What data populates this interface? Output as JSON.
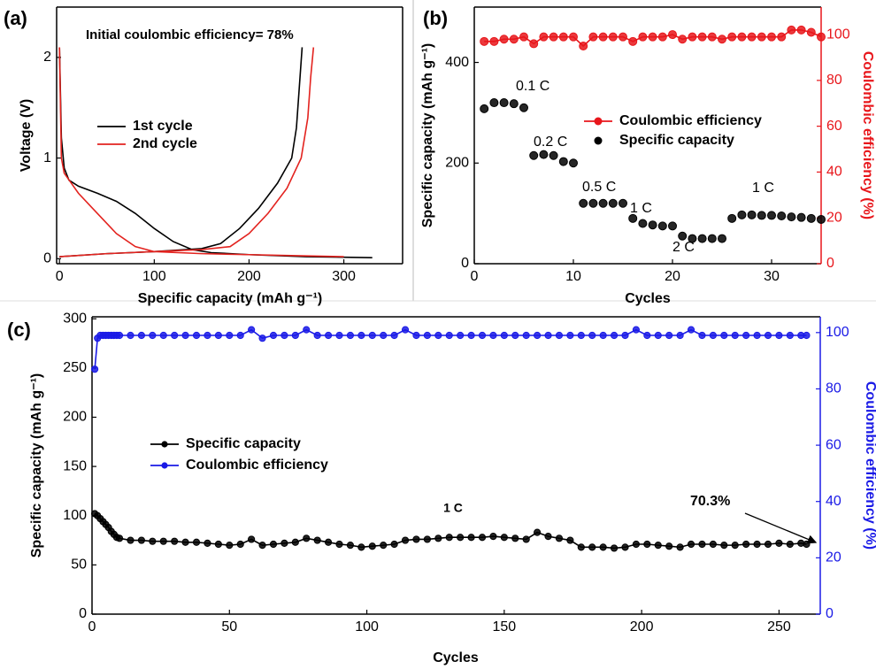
{
  "chart_data": [
    {
      "type": "line",
      "panel": "(a)",
      "annotations": [
        "Initial coulombic efficiency= 78%"
      ],
      "x_label": "Specific capacity (mAh g⁻¹)",
      "y_label": "Voltage (V)",
      "xlim": [
        -3,
        362
      ],
      "xticks": [
        0,
        100,
        200,
        300
      ],
      "ylim": [
        -0.05,
        2.5
      ],
      "yticks": [
        0,
        1,
        2
      ],
      "series": [
        {
          "name": "1st cycle",
          "color": "#000000",
          "x": [
            0,
            2,
            5,
            10,
            20,
            40,
            60,
            80,
            100,
            120,
            140,
            160,
            200,
            260,
            330,
            null,
            0,
            50,
            100,
            150,
            170,
            190,
            210,
            230,
            245,
            250,
            253,
            256
          ],
          "values": [
            2.1,
            1.2,
            0.9,
            0.78,
            0.72,
            0.65,
            0.57,
            0.45,
            0.3,
            0.17,
            0.09,
            0.06,
            0.04,
            0.02,
            0.01,
            null,
            0.02,
            0.05,
            0.07,
            0.1,
            0.15,
            0.3,
            0.5,
            0.75,
            1.0,
            1.3,
            1.7,
            2.1
          ]
        },
        {
          "name": "2nd cycle",
          "color": "#e3231f",
          "x": [
            0,
            2,
            5,
            20,
            40,
            60,
            80,
            100,
            150,
            200,
            250,
            300,
            null,
            0,
            50,
            100,
            150,
            180,
            200,
            220,
            240,
            255,
            262,
            265,
            268
          ],
          "values": [
            2.1,
            1.0,
            0.85,
            0.65,
            0.45,
            0.25,
            0.12,
            0.07,
            0.05,
            0.04,
            0.03,
            0.02,
            null,
            0.02,
            0.05,
            0.07,
            0.09,
            0.12,
            0.25,
            0.45,
            0.7,
            1.0,
            1.4,
            1.8,
            2.1
          ]
        }
      ]
    },
    {
      "type": "line",
      "panel": "(b)",
      "annotations": [
        "0.1 C",
        "0.2 C",
        "0.5 C",
        "1 C",
        "2 C",
        "1 C"
      ],
      "x_label": "Cycles",
      "y_label": "Specific capacity (mAh g⁻¹)",
      "y2_label": "Coulombic efficiency (%)",
      "xlim": [
        0,
        35
      ],
      "xticks": [
        0,
        10,
        20,
        30
      ],
      "ylim": [
        0,
        510
      ],
      "yticks": [
        0,
        200,
        400
      ],
      "y2lim": [
        0,
        112
      ],
      "y2ticks": [
        0,
        20,
        40,
        60,
        80,
        100
      ],
      "x": [
        1,
        2,
        3,
        4,
        5,
        6,
        7,
        8,
        9,
        10,
        11,
        12,
        13,
        14,
        15,
        16,
        17,
        18,
        19,
        20,
        21,
        22,
        23,
        24,
        25,
        26,
        27,
        28,
        29,
        30,
        31,
        32,
        33,
        34,
        35
      ],
      "series": [
        {
          "name": "Coulombic efficiency",
          "color": "#e8161b",
          "axis": "y2",
          "line": true,
          "marker": true,
          "values": [
            97,
            97,
            98,
            98,
            99,
            96,
            99,
            99,
            99,
            99,
            95,
            99,
            99,
            99,
            99,
            97,
            99,
            99,
            99,
            100,
            98,
            99,
            99,
            99,
            98,
            99,
            99,
            99,
            99,
            99,
            99,
            102,
            102,
            101,
            99
          ]
        },
        {
          "name": "Specific capacity",
          "color": "#000000",
          "line": false,
          "marker": true,
          "values": [
            308,
            320,
            320,
            318,
            310,
            215,
            217,
            215,
            203,
            200,
            120,
            120,
            120,
            120,
            120,
            90,
            80,
            77,
            75,
            75,
            55,
            50,
            50,
            50,
            50,
            90,
            97,
            97,
            96,
            96,
            95,
            93,
            92,
            90,
            88
          ]
        }
      ]
    },
    {
      "type": "line",
      "panel": "(c)",
      "annotations": [
        "1 C",
        "70.3%"
      ],
      "x_label": "Cycles",
      "y_label": "Specific capacity (mAh g⁻¹)",
      "y2_label": "Coulombic efficiency (%)",
      "xlim": [
        0,
        265
      ],
      "xticks": [
        0,
        50,
        100,
        150,
        200,
        250
      ],
      "ylim": [
        0,
        302
      ],
      "yticks": [
        0,
        50,
        100,
        150,
        200,
        250,
        300
      ],
      "y2lim": [
        0,
        105.6
      ],
      "y2ticks": [
        0,
        20,
        40,
        60,
        80,
        100
      ],
      "x": [
        1,
        2,
        3,
        4,
        5,
        6,
        7,
        8,
        9,
        10,
        14,
        18,
        22,
        26,
        30,
        34,
        38,
        42,
        46,
        50,
        54,
        58,
        62,
        66,
        70,
        74,
        78,
        82,
        86,
        90,
        94,
        98,
        102,
        106,
        110,
        114,
        118,
        122,
        126,
        130,
        134,
        138,
        142,
        146,
        150,
        154,
        158,
        162,
        166,
        170,
        174,
        178,
        182,
        186,
        190,
        194,
        198,
        202,
        206,
        210,
        214,
        218,
        222,
        226,
        230,
        234,
        238,
        242,
        246,
        250,
        254,
        258,
        260
      ],
      "series": [
        {
          "name": "Specific capacity",
          "color": "#000000",
          "line": true,
          "marker": true,
          "values": [
            102,
            100,
            97,
            94,
            91,
            88,
            84,
            81,
            78,
            77,
            75,
            75,
            74,
            74,
            74,
            73,
            73,
            72,
            71,
            70,
            71,
            76,
            70,
            71,
            72,
            73,
            77,
            75,
            73,
            71,
            70,
            68,
            69,
            70,
            71,
            75,
            76,
            76,
            77,
            78,
            78,
            78,
            78,
            79,
            78,
            77,
            76,
            83,
            79,
            77,
            75,
            68,
            68,
            68,
            67,
            68,
            71,
            71,
            70,
            69,
            68,
            71,
            71,
            71,
            70,
            70,
            71,
            71,
            71,
            72,
            71,
            72,
            71
          ]
        },
        {
          "name": "Coulombic efficiency",
          "color": "#1a1ae6",
          "axis": "y2",
          "line": true,
          "marker": true,
          "values": [
            87,
            98,
            99,
            99,
            99,
            99,
            99,
            99,
            99,
            99,
            99,
            99,
            99,
            99,
            99,
            99,
            99,
            99,
            99,
            99,
            99,
            101,
            98,
            99,
            99,
            99,
            101,
            99,
            99,
            99,
            99,
            99,
            99,
            99,
            99,
            101,
            99,
            99,
            99,
            99,
            99,
            99,
            99,
            99,
            99,
            99,
            99,
            99,
            99,
            99,
            99,
            99,
            99,
            99,
            99,
            99,
            101,
            99,
            99,
            99,
            99,
            101,
            99,
            99,
            99,
            99,
            99,
            99,
            99,
            99,
            99,
            99,
            99
          ]
        }
      ]
    }
  ]
}
